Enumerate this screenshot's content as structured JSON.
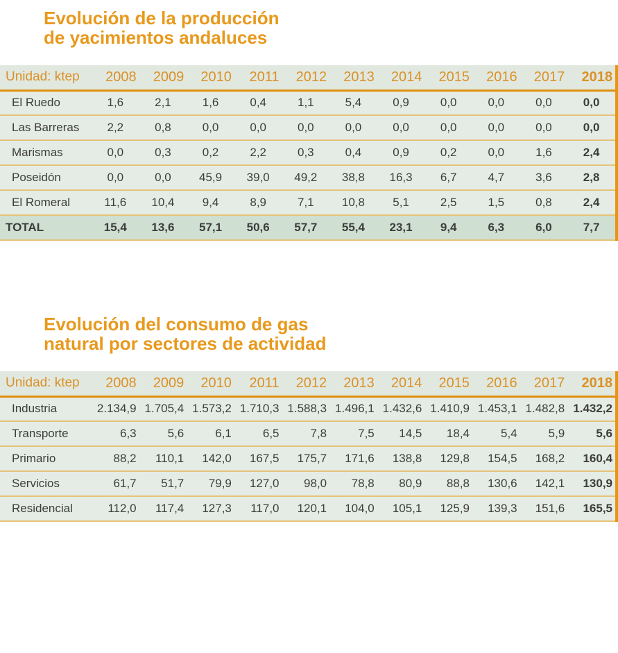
{
  "colors": {
    "accent_orange": "#E8991C",
    "header_year_orange": "#DB9127",
    "header_underline_orange": "#DD8F0E",
    "right_border_orange": "#E8950E",
    "row_separator_tan": "#E5C278",
    "header_bg": "#E1E8E0",
    "row_bg": "#E5ECE5",
    "total_row_bg": "#CFDFD2",
    "text_dark": "#3D3D3C"
  },
  "tables": [
    {
      "title_line1": "Evolución de la producción",
      "title_line2": "de yacimientos andaluces",
      "unit_label": "Unidad: ktep",
      "align": "center",
      "years": [
        "2008",
        "2009",
        "2010",
        "2011",
        "2012",
        "2013",
        "2014",
        "2015",
        "2016",
        "2017",
        "2018"
      ],
      "rows": [
        {
          "label": "El Ruedo",
          "values": [
            "1,6",
            "2,1",
            "1,6",
            "0,4",
            "1,1",
            "5,4",
            "0,9",
            "0,0",
            "0,0",
            "0,0",
            "0,0"
          ],
          "is_total": false
        },
        {
          "label": "Las Barreras",
          "values": [
            "2,2",
            "0,8",
            "0,0",
            "0,0",
            "0,0",
            "0,0",
            "0,0",
            "0,0",
            "0,0",
            "0,0",
            "0,0"
          ],
          "is_total": false
        },
        {
          "label": "Marismas",
          "values": [
            "0,0",
            "0,3",
            "0,2",
            "2,2",
            "0,3",
            "0,4",
            "0,9",
            "0,2",
            "0,0",
            "1,6",
            "2,4"
          ],
          "is_total": false
        },
        {
          "label": "Poseidón",
          "values": [
            "0,0",
            "0,0",
            "45,9",
            "39,0",
            "49,2",
            "38,8",
            "16,3",
            "6,7",
            "4,7",
            "3,6",
            "2,8"
          ],
          "is_total": false
        },
        {
          "label": "El Romeral",
          "values": [
            "11,6",
            "10,4",
            "9,4",
            "8,9",
            "7,1",
            "10,8",
            "5,1",
            "2,5",
            "1,5",
            "0,8",
            "2,4"
          ],
          "is_total": false
        },
        {
          "label": "TOTAL",
          "values": [
            "15,4",
            "13,6",
            "57,1",
            "50,6",
            "57,7",
            "55,4",
            "23,1",
            "9,4",
            "6,3",
            "6,0",
            "7,7"
          ],
          "is_total": true
        }
      ]
    },
    {
      "title_line1": "Evolución del consumo de gas",
      "title_line2": "natural por sectores de actividad",
      "unit_label": "Unidad: ktep",
      "align": "right",
      "years": [
        "2008",
        "2009",
        "2010",
        "2011",
        "2012",
        "2013",
        "2014",
        "2015",
        "2016",
        "2017",
        "2018"
      ],
      "rows": [
        {
          "label": "Industria",
          "values": [
            "2.134,9",
            "1.705,4",
            "1.573,2",
            "1.710,3",
            "1.588,3",
            "1.496,1",
            "1.432,6",
            "1.410,9",
            "1.453,1",
            "1.482,8",
            "1.432,2"
          ],
          "is_total": false
        },
        {
          "label": "Transporte",
          "values": [
            "6,3",
            "5,6",
            "6,1",
            "6,5",
            "7,8",
            "7,5",
            "14,5",
            "18,4",
            "5,4",
            "5,9",
            "5,6"
          ],
          "is_total": false
        },
        {
          "label": "Primario",
          "values": [
            "88,2",
            "110,1",
            "142,0",
            "167,5",
            "175,7",
            "171,6",
            "138,8",
            "129,8",
            "154,5",
            "168,2",
            "160,4"
          ],
          "is_total": false
        },
        {
          "label": "Servicios",
          "values": [
            "61,7",
            "51,7",
            "79,9",
            "127,0",
            "98,0",
            "78,8",
            "80,9",
            "88,8",
            "130,6",
            "142,1",
            "130,9"
          ],
          "is_total": false
        },
        {
          "label": "Residencial",
          "values": [
            "112,0",
            "117,4",
            "127,3",
            "117,0",
            "120,1",
            "104,0",
            "105,1",
            "125,9",
            "139,3",
            "151,6",
            "165,5"
          ],
          "is_total": false
        }
      ]
    }
  ]
}
